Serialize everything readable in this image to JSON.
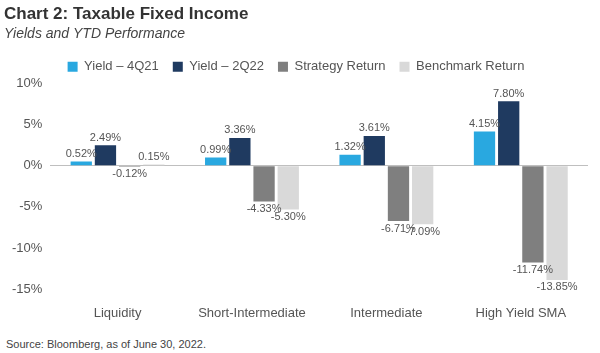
{
  "chart_data": {
    "type": "bar",
    "title": "Chart 2: Taxable Fixed Income",
    "subtitle": "Yields and YTD Performance",
    "source": "Source: Bloomberg, as of June 30, 2022.",
    "categories": [
      "Liquidity",
      "Short-Intermediate",
      "Intermediate",
      "High Yield SMA"
    ],
    "series": [
      {
        "name": "Yield – 4Q21",
        "color": "#29a8e0",
        "values": [
          0.52,
          0.99,
          1.32,
          4.15
        ],
        "value_labels": [
          "0.52%",
          "0.99%",
          "1.32%",
          "4.15%"
        ]
      },
      {
        "name": "Yield – 2Q22",
        "color": "#1f3a60",
        "values": [
          2.49,
          3.36,
          3.61,
          7.8
        ],
        "value_labels": [
          "2.49%",
          "3.36%",
          "3.61%",
          "7.80%"
        ]
      },
      {
        "name": "Strategy Return",
        "color": "#7f7f7f",
        "values": [
          -0.12,
          -4.33,
          -6.71,
          -11.74
        ],
        "value_labels": [
          "-0.12%",
          "-4.33%",
          "-6.71%",
          "-11.74%"
        ]
      },
      {
        "name": "Benchmark Return",
        "color": "#d9d9d9",
        "values": [
          0.15,
          -5.3,
          -7.09,
          -13.85
        ],
        "value_labels": [
          "0.15%",
          "-5.30%",
          "-7.09%",
          "-13.85%"
        ]
      }
    ],
    "ylim": [
      -15,
      10
    ],
    "yticks": [
      {
        "value": -15,
        "label": "-15%"
      },
      {
        "value": -10,
        "label": "-10%"
      },
      {
        "value": -5,
        "label": "-5%"
      },
      {
        "value": 0,
        "label": "0%"
      },
      {
        "value": 5,
        "label": "5%"
      },
      {
        "value": 10,
        "label": "10%"
      }
    ],
    "grid": false,
    "legend": "top",
    "data_labels": true
  }
}
